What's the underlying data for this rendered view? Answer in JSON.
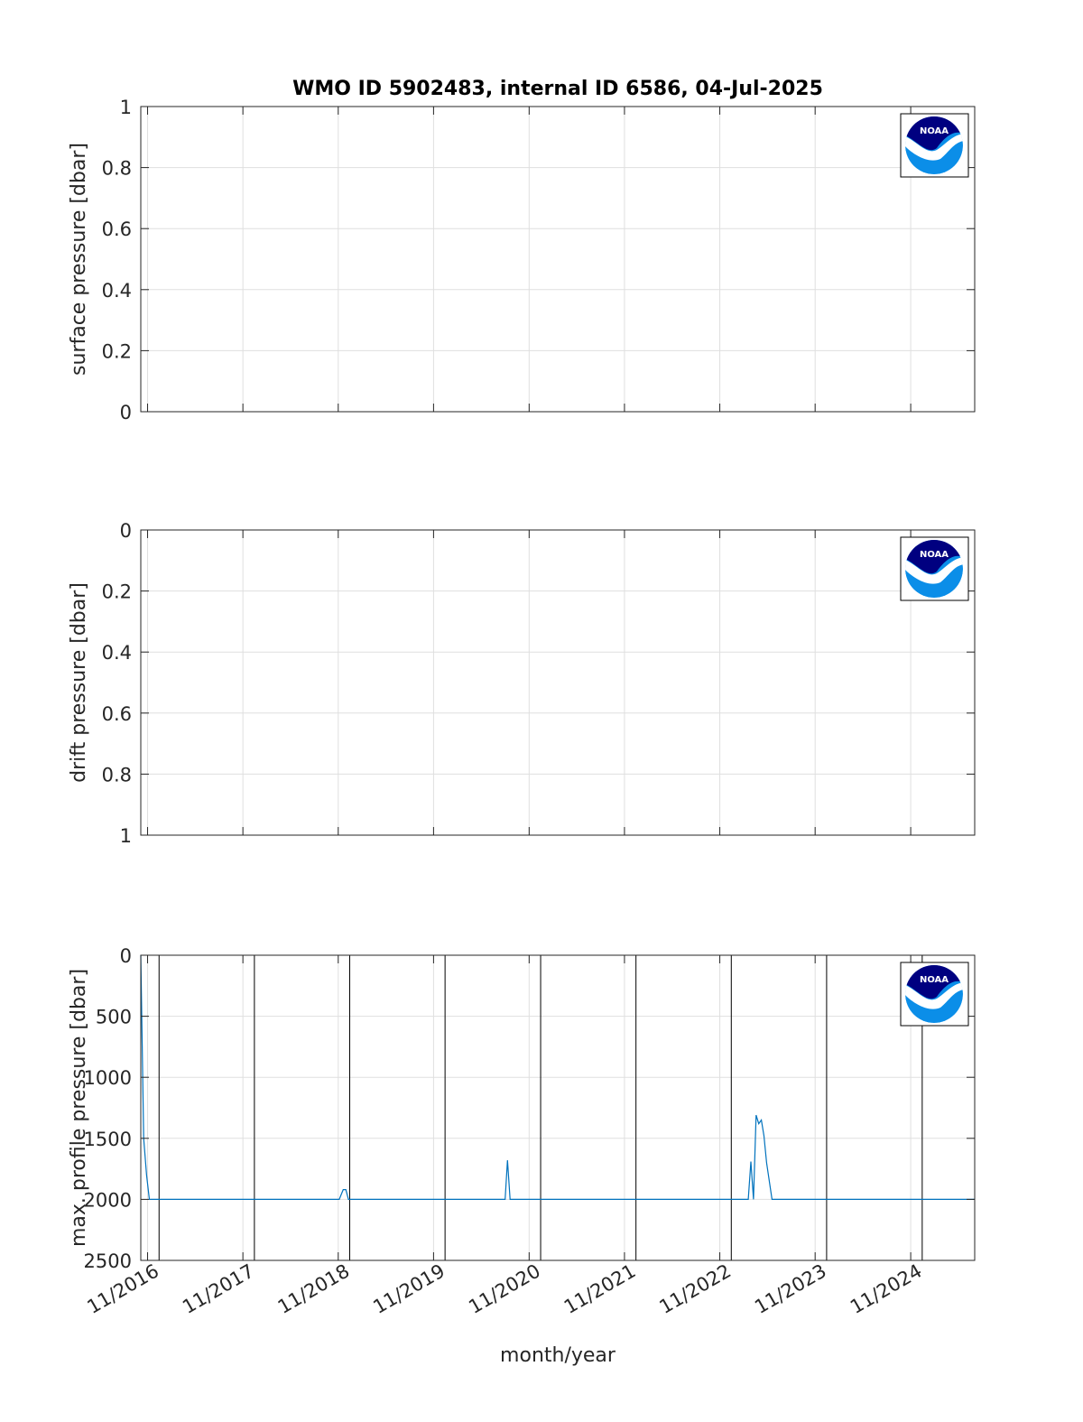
{
  "figure_title": "WMO ID 5902483, internal ID 6586, 04-Jul-2025",
  "shared_xlabel": "month/year",
  "x_ticks": [
    "11/2016",
    "11/2017",
    "11/2018",
    "11/2019",
    "11/2020",
    "11/2021",
    "11/2022",
    "11/2023",
    "11/2024"
  ],
  "logo": {
    "text": "NOAA",
    "colors": {
      "dark": "#000080",
      "light": "#0b8ee8"
    }
  },
  "colors": {
    "series": "#0072BD",
    "markers": "#000000",
    "grid": "#dfdfdf"
  },
  "chart_data": [
    {
      "type": "line",
      "ylabel": "surface pressure [dbar]",
      "ylim": [
        0,
        1
      ],
      "y_reversed": false,
      "y_ticks": [
        "0",
        "0.2",
        "0.4",
        "0.6",
        "0.8",
        "1"
      ],
      "xlim": [
        "2016-10-06",
        "2025-07-04"
      ],
      "grid": true,
      "series": []
    },
    {
      "type": "line",
      "ylabel": "drift pressure [dbar]",
      "ylim": [
        0,
        1
      ],
      "y_reversed": true,
      "y_ticks": [
        "0",
        "0.2",
        "0.4",
        "0.6",
        "0.8",
        "1"
      ],
      "xlim": [
        "2016-10-06",
        "2025-07-04"
      ],
      "grid": true,
      "series": []
    },
    {
      "type": "line",
      "ylabel": "max. profile pressure [dbar]",
      "ylim": [
        0,
        2500
      ],
      "y_reversed": true,
      "y_ticks": [
        "0",
        "500",
        "1000",
        "1500",
        "2000",
        "2500"
      ],
      "xlim": [
        "2016-10-06",
        "2025-07-04"
      ],
      "grid": true,
      "vertical_markers": [
        "2016-12-15",
        "2017-12-15",
        "2018-12-15",
        "2019-12-15",
        "2020-12-15",
        "2021-12-15",
        "2022-12-15",
        "2023-12-15",
        "2024-12-15"
      ],
      "series": [
        {
          "x": [
            "2016-10-06",
            "2016-10-17",
            "2016-10-28",
            "2016-11-08",
            "2017-01-15",
            "2017-06-15",
            "2018-01-15",
            "2018-06-15",
            "2018-11-05",
            "2018-11-20",
            "2018-11-30",
            "2018-12-10",
            "2018-12-20",
            "2019-06-15",
            "2019-12-15",
            "2020-06-15",
            "2020-08-01",
            "2020-08-10",
            "2020-08-20",
            "2020-09-10",
            "2021-06-15",
            "2022-06-15",
            "2023-01-01",
            "2023-02-18",
            "2023-02-28",
            "2023-03-10",
            "2023-03-20",
            "2023-03-30",
            "2023-04-09",
            "2023-04-19",
            "2023-04-29",
            "2023-05-20",
            "2023-06-10",
            "2024-06-15",
            "2025-07-04"
          ],
          "y": [
            0,
            1500,
            1800,
            2000,
            2000,
            2000,
            2000,
            2000,
            2000,
            1920,
            1920,
            2000,
            2000,
            2000,
            2000,
            2000,
            2000,
            1680,
            2000,
            2000,
            2000,
            2000,
            2000,
            2000,
            1690,
            2000,
            1310,
            1380,
            1350,
            1480,
            1700,
            2000,
            2000,
            2000,
            2000
          ]
        }
      ]
    }
  ]
}
